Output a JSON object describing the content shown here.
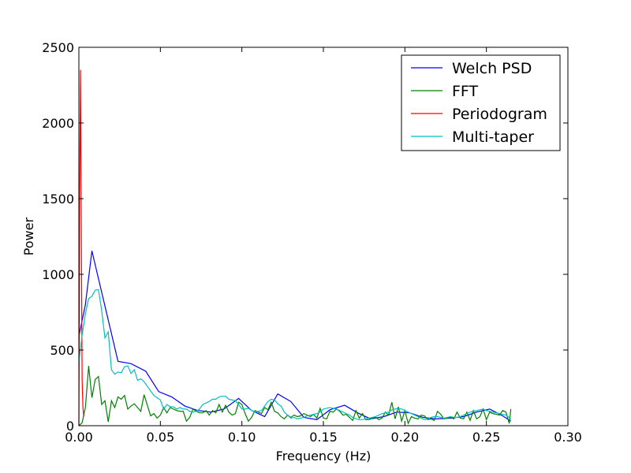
{
  "chart_data": {
    "type": "line",
    "title": "",
    "xlabel": "Frequency (Hz)",
    "ylabel": "Power",
    "xlim": [
      0,
      0.3
    ],
    "ylim": [
      0,
      2500
    ],
    "xticks": [
      "0.00",
      "0.05",
      "0.10",
      "0.15",
      "0.20",
      "0.25",
      "0.30"
    ],
    "yticks": [
      "0",
      "500",
      "1000",
      "1500",
      "2000",
      "2500"
    ],
    "grid": false,
    "legend_position": "top-right",
    "series": [
      {
        "name": "Welch PSD",
        "color": "#0000ff",
        "x": [
          0,
          0.004,
          0.008,
          0.016,
          0.024,
          0.032,
          0.041,
          0.049,
          0.057,
          0.065,
          0.073,
          0.081,
          0.089,
          0.098,
          0.106,
          0.114,
          0.122,
          0.13,
          0.138,
          0.146,
          0.154,
          0.163,
          0.171,
          0.179,
          0.187,
          0.195,
          0.203,
          0.211,
          0.219,
          0.228,
          0.236,
          0.244,
          0.252,
          0.26,
          0.265
        ],
        "y": [
          590,
          800,
          1155,
          790,
          425,
          410,
          360,
          225,
          190,
          130,
          100,
          90,
          110,
          180,
          100,
          60,
          210,
          160,
          55,
          40,
          105,
          135,
          85,
          45,
          60,
          90,
          85,
          55,
          45,
          50,
          60,
          90,
          110,
          65,
          30
        ]
      },
      {
        "name": "FFT",
        "color": "#008000",
        "x": [
          0,
          0.002,
          0.004,
          0.006,
          0.008,
          0.01,
          0.012,
          0.014,
          0.016,
          0.018,
          0.02,
          0.022,
          0.024,
          0.026,
          0.028,
          0.03,
          0.032,
          0.034,
          0.036,
          0.038,
          0.04,
          0.042,
          0.044,
          0.046,
          0.048,
          0.05,
          0.052,
          0.054,
          0.056,
          0.058,
          0.06,
          0.062,
          0.064,
          0.066,
          0.068,
          0.07,
          0.072,
          0.074,
          0.076,
          0.078,
          0.08,
          0.082,
          0.084,
          0.086,
          0.088,
          0.09,
          0.092,
          0.094,
          0.096,
          0.098,
          0.1,
          0.102,
          0.104,
          0.106,
          0.108,
          0.11,
          0.112,
          0.114,
          0.116,
          0.118,
          0.12,
          0.122,
          0.124,
          0.126,
          0.128,
          0.13,
          0.132,
          0.134,
          0.136,
          0.138,
          0.14,
          0.142,
          0.144,
          0.146,
          0.148,
          0.15,
          0.152,
          0.154,
          0.156,
          0.158,
          0.16,
          0.162,
          0.164,
          0.166,
          0.168,
          0.17,
          0.172,
          0.174,
          0.176,
          0.178,
          0.18,
          0.182,
          0.184,
          0.186,
          0.188,
          0.19,
          0.192,
          0.194,
          0.196,
          0.198,
          0.2,
          0.202,
          0.204,
          0.206,
          0.208,
          0.21,
          0.212,
          0.214,
          0.216,
          0.218,
          0.22,
          0.222,
          0.224,
          0.226,
          0.228,
          0.23,
          0.232,
          0.234,
          0.236,
          0.238,
          0.24,
          0.242,
          0.244,
          0.246,
          0.248,
          0.25,
          0.252,
          0.254,
          0.256,
          0.258,
          0.26,
          0.262,
          0.264,
          0.265
        ],
        "y": [
          0,
          20,
          120,
          395,
          185,
          305,
          325,
          140,
          165,
          25,
          165,
          120,
          190,
          175,
          200,
          110,
          130,
          145,
          120,
          95,
          205,
          135,
          65,
          80,
          50,
          70,
          120,
          85,
          120,
          110,
          100,
          95,
          95,
          30,
          55,
          110,
          95,
          85,
          85,
          100,
          70,
          100,
          85,
          140,
          90,
          135,
          90,
          70,
          80,
          155,
          140,
          80,
          30,
          55,
          100,
          90,
          80,
          120,
          105,
          155,
          95,
          85,
          60,
          45,
          70,
          55,
          70,
          60,
          65,
          80,
          70,
          60,
          75,
          50,
          115,
          50,
          45,
          95,
          90,
          110,
          95,
          70,
          75,
          55,
          35,
          100,
          50,
          80,
          40,
          40,
          50,
          55,
          40,
          50,
          90,
          70,
          155,
          45,
          125,
          30,
          100,
          15,
          60,
          50,
          45,
          70,
          65,
          40,
          45,
          35,
          95,
          75,
          45,
          50,
          55,
          45,
          90,
          50,
          45,
          90,
          35,
          100,
          45,
          60,
          110,
          40,
          90,
          80,
          75,
          70,
          100,
          90,
          15,
          110
        ]
      },
      {
        "name": "Periodogram",
        "color": "#ff0000",
        "x": [
          0,
          0.0005,
          0.001,
          0.0015,
          0.002,
          0.0025,
          0.003
        ],
        "y": [
          0,
          1550,
          2350,
          1300,
          300,
          120,
          60
        ]
      },
      {
        "name": "Multi-taper",
        "color": "#00bfbf",
        "x": [
          0,
          0.002,
          0.004,
          0.006,
          0.008,
          0.01,
          0.012,
          0.014,
          0.016,
          0.018,
          0.02,
          0.022,
          0.024,
          0.026,
          0.028,
          0.03,
          0.032,
          0.034,
          0.036,
          0.038,
          0.04,
          0.042,
          0.044,
          0.046,
          0.048,
          0.05,
          0.052,
          0.054,
          0.056,
          0.058,
          0.06,
          0.062,
          0.064,
          0.066,
          0.068,
          0.07,
          0.072,
          0.074,
          0.076,
          0.078,
          0.08,
          0.082,
          0.084,
          0.086,
          0.088,
          0.09,
          0.092,
          0.094,
          0.096,
          0.098,
          0.1,
          0.102,
          0.104,
          0.106,
          0.108,
          0.11,
          0.112,
          0.114,
          0.116,
          0.118,
          0.12,
          0.122,
          0.124,
          0.126,
          0.128,
          0.13,
          0.132,
          0.134,
          0.136,
          0.138,
          0.14,
          0.142,
          0.144,
          0.146,
          0.148,
          0.15,
          0.152,
          0.154,
          0.156,
          0.158,
          0.16,
          0.162,
          0.164,
          0.166,
          0.168,
          0.17,
          0.172,
          0.174,
          0.176,
          0.178,
          0.18,
          0.182,
          0.184,
          0.186,
          0.188,
          0.19,
          0.192,
          0.194,
          0.196,
          0.198,
          0.2,
          0.202,
          0.204,
          0.206,
          0.208,
          0.21,
          0.212,
          0.214,
          0.216,
          0.218,
          0.22,
          0.222,
          0.224,
          0.226,
          0.228,
          0.23,
          0.232,
          0.234,
          0.236,
          0.238,
          0.24,
          0.242,
          0.244,
          0.246,
          0.248,
          0.25,
          0.252,
          0.254,
          0.256,
          0.258,
          0.26,
          0.262,
          0.264,
          0.265
        ],
        "y": [
          420,
          600,
          740,
          840,
          855,
          895,
          900,
          760,
          580,
          620,
          370,
          340,
          355,
          350,
          390,
          395,
          345,
          370,
          300,
          310,
          290,
          260,
          230,
          200,
          185,
          170,
          110,
          140,
          125,
          125,
          110,
          120,
          110,
          110,
          95,
          90,
          95,
          110,
          140,
          150,
          160,
          175,
          175,
          190,
          195,
          195,
          175,
          170,
          165,
          140,
          110,
          110,
          115,
          100,
          90,
          95,
          100,
          130,
          160,
          175,
          170,
          145,
          130,
          90,
          70,
          50,
          55,
          45,
          50,
          55,
          65,
          70,
          75,
          80,
          90,
          110,
          115,
          120,
          115,
          110,
          100,
          90,
          80,
          70,
          55,
          45,
          40,
          40,
          45,
          50,
          55,
          60,
          70,
          80,
          85,
          90,
          105,
          110,
          115,
          110,
          100,
          90,
          80,
          70,
          60,
          50,
          40,
          45,
          55,
          60,
          60,
          55,
          50,
          55,
          60,
          55,
          55,
          60,
          70,
          80,
          90,
          95,
          100,
          105,
          110,
          100,
          95,
          90,
          85,
          80,
          75,
          70,
          55,
          40
        ]
      }
    ]
  }
}
